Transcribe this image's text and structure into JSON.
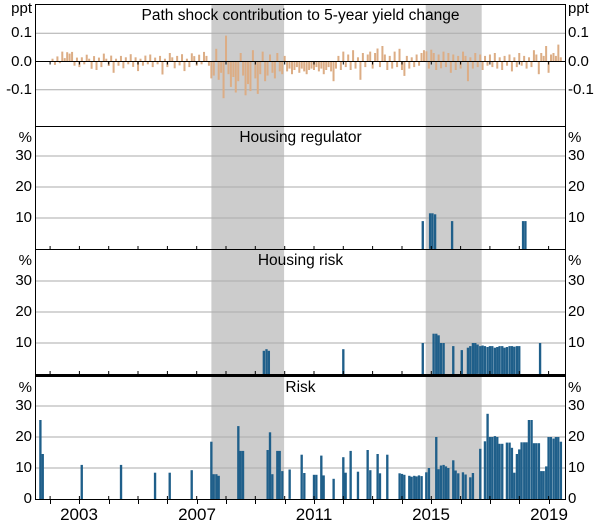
{
  "figure_title": "Path shock contribution to 5-year yield change (4-panel bar chart)",
  "x_axis": {
    "domain": [
      2001.52,
      2019.56
    ],
    "minor_tick_interval_years": 1,
    "labeled_ticks": [
      [
        2003,
        "2003"
      ],
      [
        2007,
        "2007"
      ],
      [
        2011,
        "2011"
      ],
      [
        2015,
        "2015"
      ],
      [
        2019,
        "2019"
      ]
    ]
  },
  "shaded_periods": [
    [
      2007.5,
      2009.98
    ],
    [
      2014.81,
      2016.72
    ]
  ],
  "colors": {
    "path_shock_bars": "#DCAD85",
    "blue_bars": "#1F5F8A",
    "shading": "#CCCCCC",
    "gridline": "#ABABAB",
    "frame": "#000000",
    "background": "#FFFFFF"
  },
  "chart_data": [
    {
      "type": "bar",
      "title": "Path shock contribution to 5-year yield change",
      "unit_label": "ppt",
      "ylim": [
        -0.23,
        0.2
      ],
      "yticks": [
        [
          0.1,
          "0.1"
        ],
        [
          0.0,
          "0.0"
        ],
        [
          -0.1,
          "-0.1"
        ]
      ],
      "bar_color": "#DCAD85",
      "series": {
        "name": "Path shock contribution",
        "frequency": "monthly",
        "start_year": 2002.0833,
        "values": [
          0.01,
          -0.012,
          0.018,
          -0.006,
          0.035,
          0.012,
          0.033,
          0.028,
          0.034,
          -0.015,
          0.014,
          -0.02,
          0.015,
          -0.01,
          0.024,
          0.01,
          -0.026,
          0.019,
          -0.03,
          0.014,
          -0.02,
          0.028,
          0.01,
          -0.016,
          0.021,
          -0.04,
          0.01,
          -0.015,
          0.02,
          -0.024,
          0.015,
          -0.01,
          0.026,
          -0.019,
          0.015,
          -0.034,
          0.01,
          -0.015,
          0.021,
          -0.01,
          0.025,
          -0.02,
          0.014,
          -0.01,
          0.02,
          -0.046,
          0.01,
          -0.02,
          0.03,
          0.015,
          -0.024,
          0.02,
          -0.014,
          0.026,
          -0.034,
          0.01,
          -0.02,
          0.029,
          0.019,
          -0.015,
          0.024,
          -0.01,
          0.034,
          0.02,
          -0.015,
          -0.06,
          -0.05,
          0.045,
          -0.065,
          -0.04,
          -0.13,
          0.092,
          -0.045,
          -0.09,
          -0.055,
          -0.11,
          -0.07,
          0.03,
          -0.05,
          -0.12,
          -0.08,
          -0.105,
          0.04,
          -0.06,
          -0.115,
          -0.045,
          0.035,
          -0.07,
          -0.05,
          0.025,
          -0.04,
          -0.06,
          0.03,
          -0.035,
          -0.045,
          0.02,
          -0.035,
          -0.025,
          -0.045,
          -0.03,
          -0.02,
          -0.04,
          -0.025,
          -0.035,
          -0.045,
          -0.03,
          -0.025,
          -0.03,
          -0.02,
          -0.035,
          -0.025,
          -0.045,
          -0.03,
          -0.02,
          -0.035,
          -0.07,
          -0.025,
          0.02,
          -0.03,
          0.035,
          -0.02,
          0.025,
          -0.03,
          0.04,
          -0.025,
          0.015,
          -0.065,
          0.03,
          -0.02,
          0.025,
          0.035,
          -0.025,
          0.03,
          0.046,
          -0.02,
          0.055,
          0.025,
          -0.03,
          0.02,
          -0.025,
          0.035,
          -0.02,
          0.045,
          -0.03,
          -0.051,
          0.02,
          -0.025,
          0.015,
          -0.02,
          0.025,
          -0.015,
          0.03,
          0.04,
          0.036,
          -0.025,
          0.042,
          0.03,
          -0.03,
          0.025,
          -0.024,
          0.035,
          -0.02,
          0.03,
          -0.04,
          0.025,
          -0.03,
          0.02,
          -0.025,
          0.035,
          0.02,
          -0.07,
          0.015,
          -0.025,
          0.03,
          -0.02,
          0.025,
          -0.03,
          0.02,
          -0.015,
          0.025,
          -0.02,
          0.03,
          -0.025,
          0.015,
          -0.03,
          0.02,
          -0.015,
          0.025,
          -0.035,
          0.015,
          -0.02,
          0.03,
          -0.015,
          0.02,
          -0.025,
          0.015,
          -0.02,
          0.04,
          0.025,
          -0.045,
          0.03,
          0.02,
          0.055,
          -0.04,
          0.025,
          0.03,
          0.02,
          0.06,
          0.015
        ]
      }
    },
    {
      "type": "bar",
      "title": "Housing regulator",
      "unit_label": "%",
      "ylim": [
        0,
        39.5
      ],
      "yticks": [
        [
          30,
          "30"
        ],
        [
          20,
          "20"
        ],
        [
          10,
          "10"
        ]
      ],
      "bar_color": "#1F5F8A",
      "points": [
        [
          2014.71,
          9
        ],
        [
          2014.96,
          11.5
        ],
        [
          2015.04,
          11.5
        ],
        [
          2015.13,
          11.2
        ],
        [
          2015.71,
          9
        ],
        [
          2018.13,
          9
        ],
        [
          2018.21,
          9
        ]
      ]
    },
    {
      "type": "bar",
      "title": "Housing risk",
      "unit_label": "%",
      "ylim": [
        0,
        40
      ],
      "yticks": [
        [
          30,
          "30"
        ],
        [
          20,
          "20"
        ],
        [
          10,
          "10"
        ]
      ],
      "bar_color": "#1F5F8A",
      "points": [
        [
          2009.29,
          7.5
        ],
        [
          2009.38,
          8
        ],
        [
          2009.46,
          7.5
        ],
        [
          2012.0,
          8
        ],
        [
          2014.71,
          10
        ],
        [
          2015.08,
          13
        ],
        [
          2015.17,
          13
        ],
        [
          2015.25,
          12.5
        ],
        [
          2015.33,
          10
        ],
        [
          2015.42,
          10
        ],
        [
          2015.75,
          9
        ],
        [
          2016.04,
          7.7
        ],
        [
          2016.25,
          8.5
        ],
        [
          2016.33,
          9
        ],
        [
          2016.42,
          10
        ],
        [
          2016.5,
          10
        ],
        [
          2016.58,
          9.5
        ],
        [
          2016.67,
          9
        ],
        [
          2016.75,
          9.2
        ],
        [
          2016.83,
          9
        ],
        [
          2016.92,
          8.7
        ],
        [
          2017.0,
          9
        ],
        [
          2017.08,
          9
        ],
        [
          2017.17,
          8.5
        ],
        [
          2017.25,
          8.7
        ],
        [
          2017.33,
          9
        ],
        [
          2017.42,
          9
        ],
        [
          2017.5,
          8.5
        ],
        [
          2017.58,
          8.7
        ],
        [
          2017.67,
          9
        ],
        [
          2017.75,
          9
        ],
        [
          2017.83,
          8.8
        ],
        [
          2017.92,
          9
        ],
        [
          2018.0,
          9
        ],
        [
          2018.71,
          10
        ]
      ]
    },
    {
      "type": "bar",
      "title": "Risk",
      "unit_label": "%",
      "ylim": [
        0,
        41
      ],
      "yticks": [
        [
          30,
          "30"
        ],
        [
          20,
          "20"
        ],
        [
          10,
          "10"
        ],
        [
          0,
          "0"
        ]
      ],
      "bar_color": "#1F5F8A",
      "points": [
        [
          2001.67,
          25.5
        ],
        [
          2001.75,
          14.5
        ],
        [
          2003.08,
          11
        ],
        [
          2004.42,
          11
        ],
        [
          2005.58,
          8.5
        ],
        [
          2006.08,
          8.5
        ],
        [
          2006.83,
          9.3
        ],
        [
          2007.5,
          18.5
        ],
        [
          2007.58,
          8
        ],
        [
          2007.67,
          8
        ],
        [
          2007.75,
          7.5
        ],
        [
          2008.42,
          23.5
        ],
        [
          2008.5,
          15.5
        ],
        [
          2008.58,
          15.5
        ],
        [
          2009.42,
          15.8
        ],
        [
          2009.5,
          21.5
        ],
        [
          2009.58,
          8
        ],
        [
          2009.75,
          15.5
        ],
        [
          2009.83,
          15.5
        ],
        [
          2009.92,
          9
        ],
        [
          2010.17,
          9.5
        ],
        [
          2010.58,
          14.3
        ],
        [
          2010.67,
          8.4
        ],
        [
          2011.0,
          7.8
        ],
        [
          2011.08,
          7.8
        ],
        [
          2011.25,
          14
        ],
        [
          2011.33,
          7.6
        ],
        [
          2011.67,
          6.5
        ],
        [
          2012.0,
          13.5
        ],
        [
          2012.08,
          8.5
        ],
        [
          2012.25,
          15.5
        ],
        [
          2012.5,
          8.8
        ],
        [
          2012.83,
          15.8
        ],
        [
          2012.92,
          9.3
        ],
        [
          2013.17,
          14.5
        ],
        [
          2013.25,
          8.3
        ],
        [
          2013.5,
          14.3
        ],
        [
          2013.92,
          8.3
        ],
        [
          2014.0,
          8.1
        ],
        [
          2014.08,
          7.8
        ],
        [
          2014.25,
          7.5
        ],
        [
          2014.33,
          7.2
        ],
        [
          2014.42,
          7.5
        ],
        [
          2014.5,
          7.3
        ],
        [
          2014.58,
          7.6
        ],
        [
          2014.67,
          7.4
        ],
        [
          2014.83,
          8.6
        ],
        [
          2014.92,
          10
        ],
        [
          2015.17,
          20
        ],
        [
          2015.25,
          9.6
        ],
        [
          2015.33,
          10.8
        ],
        [
          2015.42,
          11
        ],
        [
          2015.5,
          10.5
        ],
        [
          2015.58,
          10
        ],
        [
          2015.75,
          12.5
        ],
        [
          2015.83,
          9.2
        ],
        [
          2015.92,
          8.3
        ],
        [
          2016.08,
          8.6
        ],
        [
          2016.17,
          7.9
        ],
        [
          2016.33,
          7.0
        ],
        [
          2016.42,
          8.4
        ],
        [
          2016.67,
          16.2
        ],
        [
          2016.83,
          18.6
        ],
        [
          2016.92,
          27.5
        ],
        [
          2017.0,
          20
        ],
        [
          2017.08,
          20
        ],
        [
          2017.17,
          20.3
        ],
        [
          2017.25,
          20
        ],
        [
          2017.33,
          17.8
        ],
        [
          2017.42,
          17.8
        ],
        [
          2017.58,
          18.2
        ],
        [
          2017.67,
          18.2
        ],
        [
          2017.75,
          16.5
        ],
        [
          2017.83,
          8.5
        ],
        [
          2017.92,
          14.5
        ],
        [
          2018.0,
          16
        ],
        [
          2018.08,
          18.3
        ],
        [
          2018.17,
          18.3
        ],
        [
          2018.25,
          18.3
        ],
        [
          2018.33,
          25.5
        ],
        [
          2018.42,
          25.5
        ],
        [
          2018.5,
          18
        ],
        [
          2018.58,
          18
        ],
        [
          2018.67,
          18
        ],
        [
          2018.75,
          9
        ],
        [
          2018.83,
          9
        ],
        [
          2018.92,
          10.5
        ],
        [
          2019.0,
          20
        ],
        [
          2019.08,
          20
        ],
        [
          2019.17,
          19.5
        ],
        [
          2019.25,
          20
        ],
        [
          2019.33,
          20
        ],
        [
          2019.42,
          18.5
        ]
      ]
    }
  ]
}
